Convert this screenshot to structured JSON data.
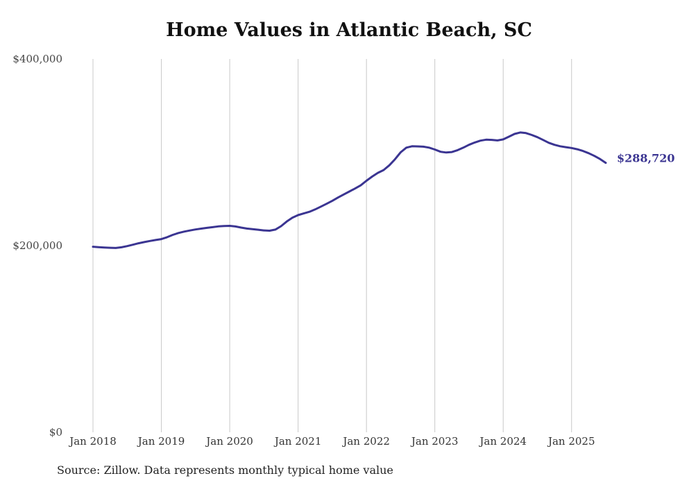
{
  "title": "Home Values in Atlantic Beach, SC",
  "source": "Source: Zillow. Data represents monthly typical home value",
  "colors": {
    "line": "#3b3592",
    "grid": "#c8c8c8",
    "text": "#333333"
  },
  "chart_data": {
    "type": "line",
    "title": "Home Values in Atlantic Beach, SC",
    "xlabel": "",
    "ylabel": "",
    "ylim": [
      0,
      400000
    ],
    "xlim": [
      "2018-01",
      "2025-07"
    ],
    "y_ticks": [
      {
        "value": 0,
        "label": "$0"
      },
      {
        "value": 200000,
        "label": "$200,000"
      },
      {
        "value": 400000,
        "label": "$400,000"
      }
    ],
    "x_ticks": [
      {
        "date": "2018-01",
        "label": "Jan 2018"
      },
      {
        "date": "2019-01",
        "label": "Jan 2019"
      },
      {
        "date": "2020-01",
        "label": "Jan 2020"
      },
      {
        "date": "2021-01",
        "label": "Jan 2021"
      },
      {
        "date": "2022-01",
        "label": "Jan 2022"
      },
      {
        "date": "2023-01",
        "label": "Jan 2023"
      },
      {
        "date": "2024-01",
        "label": "Jan 2024"
      },
      {
        "date": "2025-01",
        "label": "Jan 2025"
      }
    ],
    "grid": "vertical",
    "legend": "none",
    "end_label": "$288,720",
    "series": [
      {
        "x": [
          "2018-01",
          "2018-02",
          "2018-03",
          "2018-04",
          "2018-05",
          "2018-06",
          "2018-07",
          "2018-08",
          "2018-09",
          "2018-10",
          "2018-11",
          "2018-12",
          "2019-01",
          "2019-02",
          "2019-03",
          "2019-04",
          "2019-05",
          "2019-06",
          "2019-07",
          "2019-08",
          "2019-09",
          "2019-10",
          "2019-11",
          "2019-12",
          "2020-01",
          "2020-02",
          "2020-03",
          "2020-04",
          "2020-05",
          "2020-06",
          "2020-07",
          "2020-08",
          "2020-09",
          "2020-10",
          "2020-11",
          "2020-12",
          "2021-01",
          "2021-02",
          "2021-03",
          "2021-04",
          "2021-05",
          "2021-06",
          "2021-07",
          "2021-08",
          "2021-09",
          "2021-10",
          "2021-11",
          "2021-12",
          "2022-01",
          "2022-02",
          "2022-03",
          "2022-04",
          "2022-05",
          "2022-06",
          "2022-07",
          "2022-08",
          "2022-09",
          "2022-10",
          "2022-11",
          "2022-12",
          "2023-01",
          "2023-02",
          "2023-03",
          "2023-04",
          "2023-05",
          "2023-06",
          "2023-07",
          "2023-08",
          "2023-09",
          "2023-10",
          "2023-11",
          "2023-12",
          "2024-01",
          "2024-02",
          "2024-03",
          "2024-04",
          "2024-05",
          "2024-06",
          "2024-07",
          "2024-08",
          "2024-09",
          "2024-10",
          "2024-11",
          "2024-12",
          "2025-01",
          "2025-02",
          "2025-03",
          "2025-04",
          "2025-05",
          "2025-06",
          "2025-07"
        ],
        "values": [
          198800,
          198400,
          198000,
          197700,
          197500,
          198200,
          199500,
          201000,
          202500,
          203800,
          205000,
          206000,
          207000,
          209000,
          211500,
          213500,
          215000,
          216200,
          217300,
          218200,
          219000,
          219800,
          220600,
          221000,
          221200,
          220500,
          219300,
          218300,
          217600,
          217000,
          216300,
          216000,
          217200,
          220800,
          225800,
          230000,
          232700,
          234500,
          236300,
          238800,
          241800,
          244800,
          248000,
          251500,
          254800,
          258000,
          261200,
          264600,
          269500,
          274000,
          278000,
          281000,
          286000,
          292500,
          300000,
          305000,
          306500,
          306300,
          306000,
          305000,
          303000,
          300600,
          299800,
          300300,
          302300,
          305000,
          308000,
          310500,
          312500,
          313500,
          313300,
          312700,
          313800,
          316700,
          319700,
          321300,
          320600,
          318600,
          316200,
          313200,
          310200,
          308000,
          306500,
          305500,
          304600,
          303300,
          301400,
          299000,
          296100,
          292800,
          288720
        ]
      }
    ]
  }
}
